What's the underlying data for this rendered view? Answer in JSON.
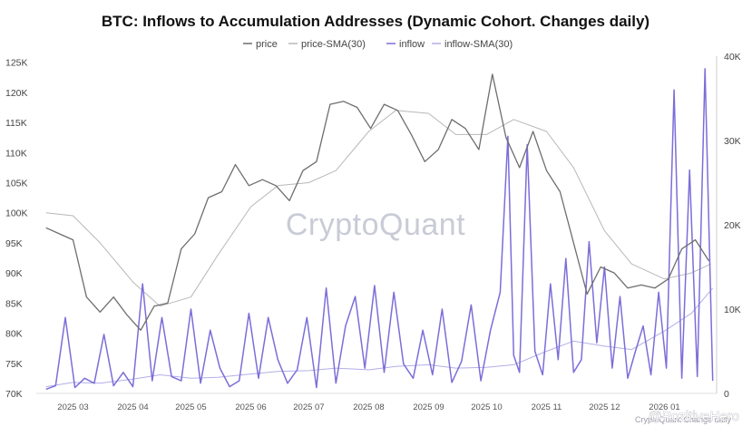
{
  "chart_data": {
    "type": "line",
    "title": "BTC: Inflows to Accumulation Addresses (Dynamic Cohort. Changes daily)",
    "legend": {
      "placement": "top-center",
      "entries": [
        "price",
        "price-SMA(30)",
        "inflow",
        "inflow-SMA(30)"
      ]
    },
    "x_tick_labels": [
      "2025 03",
      "2025 04",
      "2025 05",
      "2025 06",
      "2025 07",
      "2025 08",
      "2025 09",
      "2025 10",
      "2025 11",
      "2025 12",
      "2026 01"
    ],
    "y_left": {
      "ylim": [
        70000,
        126000
      ],
      "tick_values": [
        70000,
        75000,
        80000,
        85000,
        90000,
        95000,
        100000,
        105000,
        110000,
        115000,
        120000,
        125000
      ],
      "tick_labels": [
        "70K",
        "75K",
        "80K",
        "85K",
        "90K",
        "95K",
        "100K",
        "105K",
        "110K",
        "115K",
        "120K",
        "125K"
      ]
    },
    "y_right": {
      "ylim": [
        0,
        40000
      ],
      "tick_values": [
        0,
        10000,
        20000,
        30000,
        40000
      ],
      "tick_labels": [
        "0",
        "10K",
        "20K",
        "30K",
        "40K"
      ]
    },
    "grid": false,
    "series": [
      {
        "name": "price",
        "axis": "left",
        "color": "#6e6e6e",
        "x": [
          "2025-02-15",
          "2025-02-22",
          "2025-03-01",
          "2025-03-08",
          "2025-03-15",
          "2025-03-22",
          "2025-03-29",
          "2025-04-05",
          "2025-04-12",
          "2025-04-19",
          "2025-04-26",
          "2025-05-03",
          "2025-05-10",
          "2025-05-17",
          "2025-05-24",
          "2025-05-31",
          "2025-06-07",
          "2025-06-14",
          "2025-06-21",
          "2025-06-28",
          "2025-07-05",
          "2025-07-12",
          "2025-07-19",
          "2025-07-26",
          "2025-08-02",
          "2025-08-09",
          "2025-08-16",
          "2025-08-23",
          "2025-08-30",
          "2025-09-06",
          "2025-09-13",
          "2025-09-20",
          "2025-09-27",
          "2025-10-04",
          "2025-10-11",
          "2025-10-18",
          "2025-10-25",
          "2025-11-01",
          "2025-11-08",
          "2025-11-15",
          "2025-11-22",
          "2025-11-29",
          "2025-12-06",
          "2025-12-13",
          "2025-12-20",
          "2025-12-27",
          "2026-01-03",
          "2026-01-10",
          "2026-01-17",
          "2026-01-24"
        ],
        "values": [
          97500,
          96500,
          95500,
          86000,
          83500,
          86000,
          83000,
          80500,
          84500,
          85000,
          94000,
          96500,
          102500,
          103500,
          108000,
          104500,
          105500,
          104500,
          102000,
          107000,
          108500,
          118000,
          118500,
          117500,
          114000,
          118000,
          117000,
          113000,
          108500,
          110500,
          115500,
          114000,
          110500,
          123000,
          112500,
          107500,
          113500,
          107000,
          103500,
          95000,
          86500,
          91000,
          90000,
          87500,
          88000,
          87500,
          89000,
          94000,
          95500,
          92000
        ]
      },
      {
        "name": "price-SMA(30)",
        "axis": "left",
        "color": "#b8b8b8",
        "x": [
          "2025-02-15",
          "2025-03-01",
          "2025-03-15",
          "2025-04-01",
          "2025-04-15",
          "2025-05-01",
          "2025-05-15",
          "2025-06-01",
          "2025-06-15",
          "2025-07-01",
          "2025-07-15",
          "2025-08-01",
          "2025-08-15",
          "2025-09-01",
          "2025-09-15",
          "2025-10-01",
          "2025-10-15",
          "2025-11-01",
          "2025-11-15",
          "2025-12-01",
          "2025-12-15",
          "2026-01-01",
          "2026-01-15",
          "2026-01-25"
        ],
        "values": [
          100000,
          99500,
          95000,
          88500,
          84500,
          86000,
          93000,
          101000,
          104500,
          105000,
          107000,
          113500,
          117000,
          116500,
          113000,
          113000,
          115500,
          113500,
          107500,
          97000,
          91500,
          89000,
          90000,
          91500
        ]
      },
      {
        "name": "inflow",
        "axis": "right",
        "color": "#7b6ed8",
        "x": [
          "2025-02-15",
          "2025-02-20",
          "2025-02-25",
          "2025-03-02",
          "2025-03-07",
          "2025-03-12",
          "2025-03-17",
          "2025-03-22",
          "2025-03-27",
          "2025-04-01",
          "2025-04-06",
          "2025-04-11",
          "2025-04-16",
          "2025-04-21",
          "2025-04-26",
          "2025-05-01",
          "2025-05-06",
          "2025-05-11",
          "2025-05-16",
          "2025-05-21",
          "2025-05-26",
          "2025-05-31",
          "2025-06-05",
          "2025-06-10",
          "2025-06-15",
          "2025-06-20",
          "2025-06-25",
          "2025-06-30",
          "2025-07-05",
          "2025-07-10",
          "2025-07-15",
          "2025-07-20",
          "2025-07-25",
          "2025-07-30",
          "2025-08-04",
          "2025-08-09",
          "2025-08-14",
          "2025-08-19",
          "2025-08-24",
          "2025-08-29",
          "2025-09-03",
          "2025-09-08",
          "2025-09-13",
          "2025-09-18",
          "2025-09-23",
          "2025-09-28",
          "2025-10-03",
          "2025-10-08",
          "2025-10-12",
          "2025-10-15",
          "2025-10-18",
          "2025-10-22",
          "2025-10-26",
          "2025-10-30",
          "2025-11-03",
          "2025-11-07",
          "2025-11-11",
          "2025-11-15",
          "2025-11-19",
          "2025-11-23",
          "2025-11-27",
          "2025-12-01",
          "2025-12-05",
          "2025-12-09",
          "2025-12-13",
          "2025-12-17",
          "2025-12-21",
          "2025-12-25",
          "2025-12-29",
          "2026-01-02",
          "2026-01-06",
          "2026-01-10",
          "2026-01-14",
          "2026-01-18",
          "2026-01-22",
          "2026-01-26"
        ],
        "values": [
          500,
          900,
          9000,
          700,
          1800,
          1200,
          7000,
          900,
          2500,
          800,
          13000,
          1500,
          9000,
          2000,
          1500,
          10000,
          1200,
          7500,
          3000,
          800,
          1500,
          9500,
          1800,
          9000,
          4000,
          1200,
          2800,
          9000,
          700,
          12500,
          1200,
          8000,
          11500,
          3000,
          12800,
          2500,
          12000,
          3500,
          1800,
          7500,
          2200,
          10000,
          1300,
          3800,
          10500,
          1500,
          7500,
          12000,
          30500,
          4500,
          2500,
          29500,
          5000,
          2200,
          13000,
          4000,
          16000,
          2500,
          4000,
          18000,
          6000,
          15000,
          3000,
          11500,
          1800,
          5000,
          8000,
          2200,
          12000,
          3000,
          36000,
          1800,
          26500,
          2000,
          38500,
          1500
        ]
      },
      {
        "name": "inflow-SMA(30)",
        "axis": "right",
        "color": "#b3aee8",
        "x": [
          "2025-02-15",
          "2025-03-01",
          "2025-03-15",
          "2025-04-01",
          "2025-04-15",
          "2025-05-01",
          "2025-05-15",
          "2025-06-01",
          "2025-06-15",
          "2025-07-01",
          "2025-07-15",
          "2025-08-01",
          "2025-08-15",
          "2025-09-01",
          "2025-09-15",
          "2025-10-01",
          "2025-10-15",
          "2025-11-01",
          "2025-11-15",
          "2025-12-01",
          "2025-12-15",
          "2026-01-01",
          "2026-01-15",
          "2026-01-26"
        ],
        "values": [
          800,
          1300,
          1200,
          1700,
          2200,
          1800,
          1900,
          2300,
          2600,
          2700,
          3000,
          2800,
          3200,
          3400,
          3000,
          3100,
          3400,
          5000,
          6200,
          5600,
          5200,
          7400,
          9500,
          12500
        ]
      }
    ]
  },
  "watermark": "CryptoQuant",
  "credit": "CryptoQuant  Change daily",
  "handle": "@PozitiveHero"
}
